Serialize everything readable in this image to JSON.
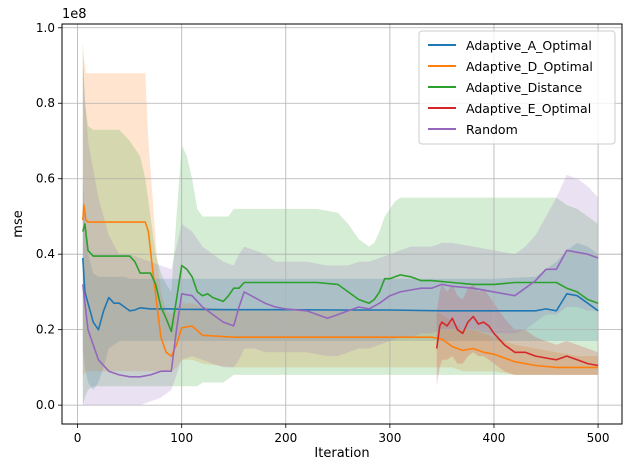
{
  "chart_data": {
    "type": "line",
    "title": "",
    "xlabel": "Iteration",
    "ylabel": "mse",
    "y_offset_label": "1e8",
    "xlim": [
      -15,
      523
    ],
    "ylim": [
      -0.05,
      1.01
    ],
    "x_ticks": [
      0,
      100,
      200,
      300,
      400,
      500
    ],
    "x_tick_labels": [
      "0",
      "100",
      "200",
      "300",
      "400",
      "500"
    ],
    "y_ticks": [
      0.0,
      0.2,
      0.4,
      0.6,
      0.8,
      1.0
    ],
    "y_tick_labels": [
      "0.0",
      "0.2",
      "0.4",
      "0.6",
      "0.8",
      "1.0"
    ],
    "grid": true,
    "legend_position": "top-right",
    "series": [
      {
        "name": "Adaptive_A_Optimal",
        "color": "#1f77b4",
        "x": [
          5,
          7,
          10,
          15,
          20,
          25,
          30,
          35,
          40,
          45,
          50,
          55,
          60,
          70,
          80,
          90,
          100,
          150,
          200,
          250,
          300,
          350,
          400,
          440,
          450,
          460,
          470,
          480,
          490,
          500
        ],
        "y": [
          0.39,
          0.3,
          0.27,
          0.22,
          0.2,
          0.25,
          0.285,
          0.27,
          0.27,
          0.26,
          0.25,
          0.252,
          0.258,
          0.255,
          0.255,
          0.255,
          0.254,
          0.253,
          0.253,
          0.252,
          0.252,
          0.25,
          0.25,
          0.25,
          0.255,
          0.25,
          0.295,
          0.29,
          0.27,
          0.25
        ],
        "band_upper": [
          0.6,
          0.5,
          0.4,
          0.35,
          0.34,
          0.34,
          0.34,
          0.34,
          0.34,
          0.34,
          0.335,
          0.335,
          0.335,
          0.335,
          0.335,
          0.335,
          0.335,
          0.335,
          0.335,
          0.335,
          0.335,
          0.335,
          0.335,
          0.34,
          0.36,
          0.38,
          0.41,
          0.43,
          0.42,
          0.4
        ],
        "band_lower": [
          0.15,
          0.1,
          0.06,
          0.04,
          0.06,
          0.1,
          0.15,
          0.16,
          0.17,
          0.17,
          0.17,
          0.17,
          0.17,
          0.17,
          0.17,
          0.17,
          0.17,
          0.17,
          0.17,
          0.17,
          0.17,
          0.17,
          0.17,
          0.17,
          0.17,
          0.17,
          0.17,
          0.17,
          0.17,
          0.17
        ]
      },
      {
        "name": "Adaptive_D_Optimal",
        "color": "#ff7f0e",
        "x": [
          5,
          6,
          8,
          10,
          20,
          30,
          40,
          50,
          60,
          65,
          68,
          72,
          76,
          80,
          85,
          90,
          95,
          100,
          110,
          120,
          150,
          200,
          250,
          300,
          340,
          350,
          360,
          370,
          380,
          390,
          400,
          420,
          440,
          460,
          480,
          500
        ],
        "y": [
          0.49,
          0.53,
          0.49,
          0.485,
          0.485,
          0.485,
          0.485,
          0.485,
          0.485,
          0.485,
          0.46,
          0.36,
          0.27,
          0.18,
          0.14,
          0.13,
          0.16,
          0.205,
          0.21,
          0.185,
          0.18,
          0.18,
          0.18,
          0.18,
          0.18,
          0.175,
          0.155,
          0.145,
          0.15,
          0.14,
          0.135,
          0.115,
          0.105,
          0.1,
          0.1,
          0.1
        ],
        "band_upper": [
          0.96,
          0.92,
          0.88,
          0.88,
          0.88,
          0.88,
          0.88,
          0.88,
          0.88,
          0.88,
          0.7,
          0.55,
          0.4,
          0.3,
          0.25,
          0.24,
          0.26,
          0.27,
          0.27,
          0.26,
          0.25,
          0.25,
          0.25,
          0.25,
          0.25,
          0.24,
          0.22,
          0.2,
          0.2,
          0.19,
          0.18,
          0.16,
          0.15,
          0.14,
          0.13,
          0.13
        ],
        "band_lower": [
          0.08,
          0.08,
          0.09,
          0.09,
          0.09,
          0.09,
          0.09,
          0.09,
          0.09,
          0.09,
          0.09,
          0.09,
          0.09,
          0.09,
          0.09,
          0.09,
          0.1,
          0.12,
          0.12,
          0.11,
          0.1,
          0.1,
          0.1,
          0.1,
          0.1,
          0.1,
          0.1,
          0.09,
          0.09,
          0.09,
          0.09,
          0.08,
          0.08,
          0.08,
          0.08,
          0.08
        ]
      },
      {
        "name": "Adaptive_Distance",
        "color": "#2ca02c",
        "x": [
          5,
          7,
          10,
          15,
          20,
          30,
          40,
          50,
          55,
          60,
          65,
          70,
          75,
          80,
          85,
          90,
          95,
          100,
          105,
          110,
          115,
          120,
          125,
          130,
          135,
          140,
          145,
          150,
          155,
          160,
          170,
          200,
          230,
          250,
          260,
          270,
          280,
          285,
          290,
          295,
          300,
          305,
          310,
          320,
          330,
          340,
          360,
          380,
          400,
          420,
          440,
          450,
          460,
          470,
          480,
          490,
          500
        ],
        "y": [
          0.46,
          0.48,
          0.41,
          0.395,
          0.395,
          0.395,
          0.395,
          0.395,
          0.38,
          0.35,
          0.35,
          0.35,
          0.32,
          0.26,
          0.23,
          0.195,
          0.28,
          0.37,
          0.36,
          0.34,
          0.3,
          0.29,
          0.295,
          0.285,
          0.28,
          0.275,
          0.29,
          0.31,
          0.31,
          0.325,
          0.325,
          0.325,
          0.325,
          0.32,
          0.3,
          0.28,
          0.27,
          0.28,
          0.3,
          0.335,
          0.335,
          0.34,
          0.345,
          0.34,
          0.33,
          0.33,
          0.325,
          0.32,
          0.32,
          0.325,
          0.325,
          0.325,
          0.325,
          0.31,
          0.3,
          0.28,
          0.27
        ],
        "band_upper": [
          0.96,
          0.8,
          0.74,
          0.73,
          0.73,
          0.73,
          0.73,
          0.7,
          0.68,
          0.66,
          0.6,
          0.5,
          0.4,
          0.35,
          0.32,
          0.3,
          0.5,
          0.69,
          0.66,
          0.6,
          0.52,
          0.5,
          0.5,
          0.5,
          0.5,
          0.5,
          0.5,
          0.52,
          0.52,
          0.52,
          0.52,
          0.52,
          0.52,
          0.51,
          0.48,
          0.44,
          0.42,
          0.43,
          0.46,
          0.5,
          0.52,
          0.54,
          0.55,
          0.55,
          0.55,
          0.55,
          0.55,
          0.55,
          0.55,
          0.55,
          0.55,
          0.55,
          0.55,
          0.53,
          0.52,
          0.5,
          0.48
        ],
        "band_lower": [
          0.0,
          0.02,
          0.04,
          0.05,
          0.05,
          0.05,
          0.05,
          0.05,
          0.05,
          0.05,
          0.05,
          0.05,
          0.05,
          0.05,
          0.05,
          0.05,
          0.05,
          0.05,
          0.05,
          0.05,
          0.05,
          0.06,
          0.06,
          0.06,
          0.06,
          0.06,
          0.07,
          0.08,
          0.08,
          0.08,
          0.08,
          0.08,
          0.08,
          0.08,
          0.08,
          0.08,
          0.08,
          0.08,
          0.08,
          0.08,
          0.08,
          0.08,
          0.08,
          0.08,
          0.08,
          0.08,
          0.08,
          0.08,
          0.08,
          0.08,
          0.08,
          0.08,
          0.08,
          0.08,
          0.08,
          0.08,
          0.08
        ]
      },
      {
        "name": "Adaptive_E_Optimal",
        "color": "#d62728",
        "x": [
          345,
          348,
          350,
          355,
          360,
          365,
          370,
          375,
          380,
          385,
          390,
          395,
          400,
          410,
          420,
          430,
          440,
          450,
          460,
          470,
          480,
          490,
          500
        ],
        "y": [
          0.15,
          0.21,
          0.22,
          0.21,
          0.23,
          0.2,
          0.19,
          0.22,
          0.235,
          0.215,
          0.22,
          0.21,
          0.19,
          0.16,
          0.14,
          0.14,
          0.13,
          0.125,
          0.12,
          0.13,
          0.12,
          0.11,
          0.105
        ],
        "band_upper": [
          0.25,
          0.3,
          0.32,
          0.3,
          0.32,
          0.29,
          0.28,
          0.31,
          0.32,
          0.3,
          0.31,
          0.29,
          0.27,
          0.23,
          0.2,
          0.2,
          0.18,
          0.17,
          0.16,
          0.17,
          0.16,
          0.15,
          0.14
        ],
        "band_lower": [
          0.05,
          0.1,
          0.12,
          0.12,
          0.13,
          0.11,
          0.11,
          0.13,
          0.14,
          0.13,
          0.13,
          0.12,
          0.11,
          0.09,
          0.08,
          0.08,
          0.08,
          0.08,
          0.08,
          0.08,
          0.08,
          0.08,
          0.08
        ]
      },
      {
        "name": "Random",
        "color": "#9467bd",
        "x": [
          5,
          10,
          20,
          30,
          40,
          50,
          60,
          70,
          80,
          90,
          95,
          100,
          110,
          120,
          130,
          140,
          150,
          155,
          160,
          170,
          180,
          190,
          200,
          220,
          240,
          250,
          260,
          270,
          280,
          290,
          300,
          310,
          320,
          330,
          340,
          350,
          360,
          380,
          400,
          420,
          430,
          440,
          450,
          460,
          470,
          480,
          490,
          500
        ],
        "y": [
          0.32,
          0.2,
          0.12,
          0.09,
          0.08,
          0.075,
          0.075,
          0.08,
          0.09,
          0.09,
          0.2,
          0.295,
          0.29,
          0.26,
          0.24,
          0.22,
          0.21,
          0.26,
          0.3,
          0.285,
          0.27,
          0.26,
          0.255,
          0.25,
          0.23,
          0.24,
          0.25,
          0.26,
          0.255,
          0.27,
          0.29,
          0.3,
          0.305,
          0.31,
          0.31,
          0.32,
          0.315,
          0.31,
          0.3,
          0.29,
          0.31,
          0.33,
          0.36,
          0.36,
          0.41,
          0.405,
          0.4,
          0.39
        ],
        "band_upper": [
          0.9,
          0.7,
          0.55,
          0.45,
          0.4,
          0.4,
          0.39,
          0.38,
          0.37,
          0.36,
          0.42,
          0.48,
          0.46,
          0.42,
          0.4,
          0.38,
          0.37,
          0.4,
          0.42,
          0.41,
          0.4,
          0.38,
          0.38,
          0.38,
          0.37,
          0.37,
          0.37,
          0.38,
          0.38,
          0.39,
          0.4,
          0.41,
          0.42,
          0.42,
          0.42,
          0.43,
          0.43,
          0.42,
          0.41,
          0.4,
          0.42,
          0.45,
          0.5,
          0.55,
          0.61,
          0.6,
          0.58,
          0.55
        ],
        "band_lower": [
          0.0,
          0.0,
          0.0,
          0.0,
          0.0,
          0.0,
          0.0,
          0.01,
          0.02,
          0.04,
          0.08,
          0.12,
          0.13,
          0.12,
          0.11,
          0.1,
          0.1,
          0.12,
          0.15,
          0.15,
          0.14,
          0.14,
          0.14,
          0.14,
          0.13,
          0.13,
          0.14,
          0.15,
          0.15,
          0.16,
          0.17,
          0.18,
          0.18,
          0.19,
          0.19,
          0.2,
          0.2,
          0.2,
          0.19,
          0.19,
          0.2,
          0.22,
          0.24,
          0.24,
          0.26,
          0.26,
          0.25,
          0.25
        ]
      }
    ]
  }
}
